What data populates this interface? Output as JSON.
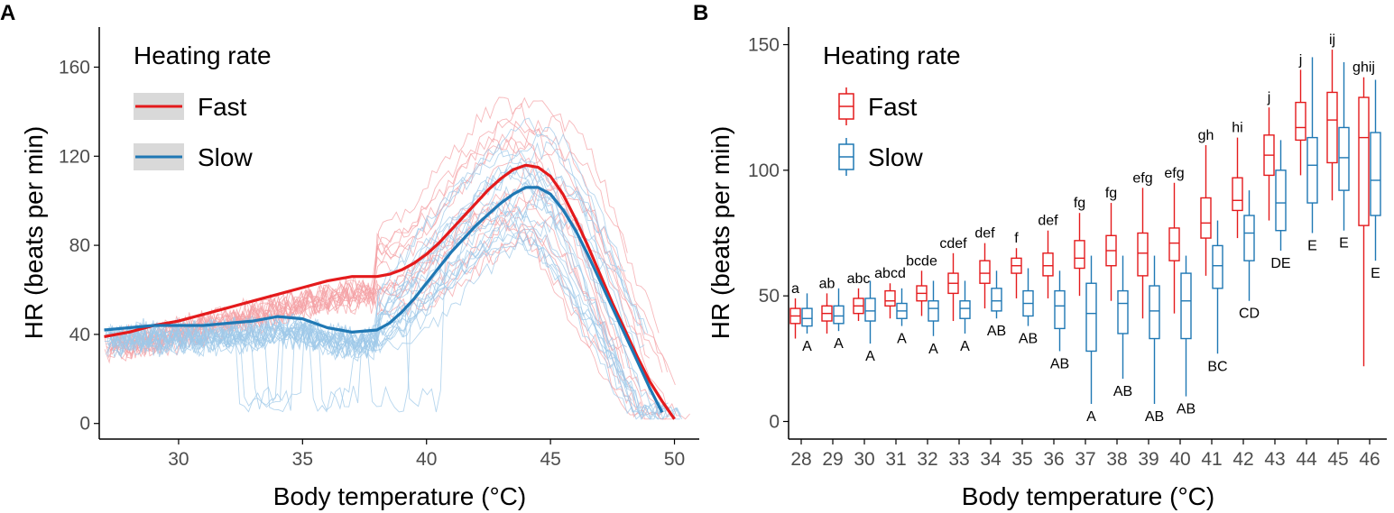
{
  "colors": {
    "fast": "#e41a1c",
    "slow": "#1f78b4",
    "fast_light": "#f4a0a4",
    "slow_light": "#9ec8e8"
  },
  "chart_data": [
    {
      "type": "line",
      "panel_label": "A",
      "xlabel": "Body temperature (°C)",
      "ylabel": "HR (beats per min)",
      "xlim": [
        26.8,
        51
      ],
      "ylim": [
        -7,
        178
      ],
      "xticks": [
        30,
        35,
        40,
        45,
        50
      ],
      "yticks": [
        0,
        40,
        80,
        120,
        160
      ],
      "legend": {
        "title": "Heating rate",
        "position": "top-left",
        "entries": [
          "Fast",
          "Slow"
        ]
      },
      "series": [
        {
          "name": "Fast",
          "color": "#e41a1c",
          "x": [
            27.0,
            28.0,
            29.0,
            30.0,
            31.0,
            32.0,
            33.0,
            34.0,
            35.0,
            36.0,
            37.0,
            38.0,
            38.5,
            39.0,
            39.5,
            40.0,
            40.5,
            41.0,
            41.5,
            42.0,
            42.5,
            43.0,
            43.5,
            44.0,
            44.5,
            45.0,
            45.5,
            46.0,
            46.5,
            47.0,
            47.5,
            48.0,
            48.5,
            49.0,
            49.5,
            50.0
          ],
          "values": [
            39,
            41,
            44,
            46,
            49,
            52,
            55,
            58,
            61,
            64,
            66,
            66,
            67,
            69,
            72,
            76,
            81,
            87,
            93,
            99,
            105,
            110,
            114,
            116,
            115,
            111,
            103,
            92,
            80,
            67,
            54,
            42,
            30,
            19,
            10,
            2
          ]
        },
        {
          "name": "Slow",
          "color": "#1f78b4",
          "x": [
            27.0,
            28.0,
            29.0,
            30.0,
            31.0,
            32.0,
            33.0,
            34.0,
            35.0,
            36.0,
            37.0,
            38.0,
            38.5,
            39.0,
            39.5,
            40.0,
            40.5,
            41.0,
            41.5,
            42.0,
            42.5,
            43.0,
            43.5,
            44.0,
            44.5,
            45.0,
            45.5,
            46.0,
            46.5,
            47.0,
            47.5,
            48.0,
            48.5,
            49.0,
            49.5
          ],
          "values": [
            42,
            43,
            44,
            44,
            44,
            45,
            46,
            48,
            47,
            43,
            41,
            42,
            45,
            50,
            56,
            63,
            70,
            77,
            83,
            89,
            94,
            99,
            103,
            106,
            106,
            103,
            96,
            87,
            76,
            64,
            52,
            40,
            28,
            16,
            5
          ]
        }
      ]
    },
    {
      "type": "boxplot",
      "panel_label": "B",
      "xlabel": "Body temperature (°C)",
      "ylabel": "HR (beats per min)",
      "ylim": [
        -7,
        157
      ],
      "yticks": [
        0,
        50,
        100,
        150
      ],
      "categories": [
        "28",
        "29",
        "30",
        "31",
        "32",
        "33",
        "34",
        "35",
        "36",
        "37",
        "38",
        "39",
        "40",
        "41",
        "42",
        "43",
        "44",
        "45",
        "46"
      ],
      "legend": {
        "title": "Heating rate",
        "position": "top-left",
        "entries": [
          "Fast",
          "Slow"
        ]
      },
      "series": [
        {
          "name": "Fast",
          "color": "#e41a1c",
          "boxes": [
            {
              "min": 33,
              "q1": 39,
              "median": 42,
              "q3": 45,
              "max": 49
            },
            {
              "min": 35,
              "q1": 40,
              "median": 43,
              "q3": 46,
              "max": 51
            },
            {
              "min": 40,
              "q1": 43,
              "median": 46,
              "q3": 49,
              "max": 53
            },
            {
              "min": 41,
              "q1": 46,
              "median": 48,
              "q3": 52,
              "max": 55
            },
            {
              "min": 42,
              "q1": 48,
              "median": 51,
              "q3": 54,
              "max": 60
            },
            {
              "min": 40,
              "q1": 51,
              "median": 55,
              "q3": 59,
              "max": 67
            },
            {
              "min": 45,
              "q1": 55,
              "median": 59,
              "q3": 64,
              "max": 71
            },
            {
              "min": 49,
              "q1": 59,
              "median": 62,
              "q3": 65,
              "max": 69
            },
            {
              "min": 49,
              "q1": 58,
              "median": 62,
              "q3": 67,
              "max": 76
            },
            {
              "min": 50,
              "q1": 61,
              "median": 65,
              "q3": 72,
              "max": 83
            },
            {
              "min": 48,
              "q1": 62,
              "median": 68,
              "q3": 74,
              "max": 87
            },
            {
              "min": 41,
              "q1": 58,
              "median": 67,
              "q3": 75,
              "max": 93
            },
            {
              "min": 43,
              "q1": 64,
              "median": 71,
              "q3": 77,
              "max": 95
            },
            {
              "min": 58,
              "q1": 73,
              "median": 79,
              "q3": 89,
              "max": 110
            },
            {
              "min": 73,
              "q1": 84,
              "median": 88,
              "q3": 97,
              "max": 113
            },
            {
              "min": 80,
              "q1": 98,
              "median": 106,
              "q3": 114,
              "max": 125
            },
            {
              "min": 98,
              "q1": 112,
              "median": 117,
              "q3": 127,
              "max": 140
            },
            {
              "min": 88,
              "q1": 103,
              "median": 120,
              "q3": 131,
              "max": 148
            },
            {
              "min": 22,
              "q1": 78,
              "median": 113,
              "q3": 129,
              "max": 137
            }
          ],
          "letters": [
            "a",
            "ab",
            "abc",
            "abcd",
            "bcde",
            "cdef",
            "def",
            "f",
            "def",
            "fg",
            "fg",
            "efg",
            "efg",
            "gh",
            "hi",
            "j",
            "j",
            "ij",
            "ghij"
          ]
        },
        {
          "name": "Slow",
          "color": "#1f78b4",
          "boxes": [
            {
              "min": 35,
              "q1": 38,
              "median": 41,
              "q3": 45,
              "max": 51
            },
            {
              "min": 36,
              "q1": 39,
              "median": 42,
              "q3": 46,
              "max": 53
            },
            {
              "min": 31,
              "q1": 40,
              "median": 44,
              "q3": 49,
              "max": 56
            },
            {
              "min": 38,
              "q1": 41,
              "median": 44,
              "q3": 47,
              "max": 53
            },
            {
              "min": 34,
              "q1": 40,
              "median": 45,
              "q3": 48,
              "max": 56
            },
            {
              "min": 35,
              "q1": 41,
              "median": 45,
              "q3": 48,
              "max": 56
            },
            {
              "min": 41,
              "q1": 44,
              "median": 48,
              "q3": 53,
              "max": 60
            },
            {
              "min": 38,
              "q1": 42,
              "median": 47,
              "q3": 52,
              "max": 61
            },
            {
              "min": 28,
              "q1": 37,
              "median": 46,
              "q3": 52,
              "max": 60
            },
            {
              "min": 7,
              "q1": 28,
              "median": 43,
              "q3": 55,
              "max": 66
            },
            {
              "min": 17,
              "q1": 35,
              "median": 47,
              "q3": 52,
              "max": 66
            },
            {
              "min": 7,
              "q1": 33,
              "median": 44,
              "q3": 54,
              "max": 66
            },
            {
              "min": 10,
              "q1": 33,
              "median": 48,
              "q3": 59,
              "max": 66
            },
            {
              "min": 27,
              "q1": 53,
              "median": 62,
              "q3": 70,
              "max": 80
            },
            {
              "min": 48,
              "q1": 64,
              "median": 75,
              "q3": 82,
              "max": 92
            },
            {
              "min": 68,
              "q1": 76,
              "median": 87,
              "q3": 100,
              "max": 112
            },
            {
              "min": 75,
              "q1": 87,
              "median": 102,
              "q3": 113,
              "max": 145
            },
            {
              "min": 76,
              "q1": 92,
              "median": 105,
              "q3": 117,
              "max": 143
            },
            {
              "min": 64,
              "q1": 82,
              "median": 96,
              "q3": 115,
              "max": 136
            }
          ],
          "letters": [
            "A",
            "A",
            "A",
            "A",
            "A",
            "A",
            "AB",
            "AB",
            "AB",
            "A",
            "AB",
            "AB",
            "AB",
            "BC",
            "CD",
            "DE",
            "E",
            "E",
            "E"
          ]
        }
      ]
    }
  ]
}
